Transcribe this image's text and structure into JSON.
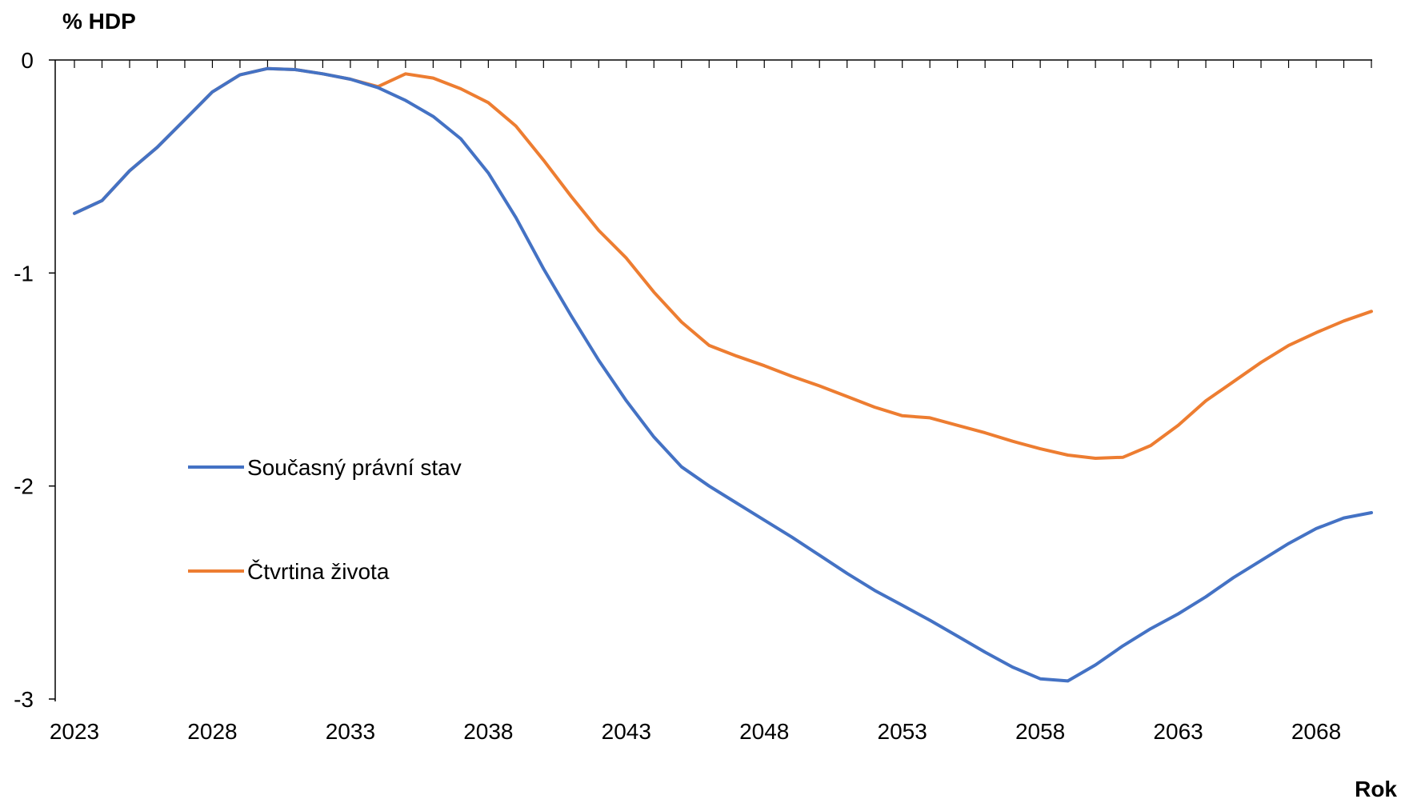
{
  "chart_data": {
    "type": "line",
    "ylabel": "% HDP",
    "xlabel": "Rok",
    "xlim": [
      2023,
      2070
    ],
    "ylim": [
      -3,
      0
    ],
    "y_ticks": [
      0,
      -1,
      -2,
      -3
    ],
    "x_tick_labels": [
      2023,
      2028,
      2033,
      2038,
      2043,
      2048,
      2053,
      2058,
      2063,
      2068
    ],
    "grid": false,
    "legend_position": "left-middle",
    "x": [
      2023,
      2024,
      2025,
      2026,
      2027,
      2028,
      2029,
      2030,
      2031,
      2032,
      2033,
      2034,
      2035,
      2036,
      2037,
      2038,
      2039,
      2040,
      2041,
      2042,
      2043,
      2044,
      2045,
      2046,
      2047,
      2048,
      2049,
      2050,
      2051,
      2052,
      2053,
      2054,
      2055,
      2056,
      2057,
      2058,
      2059,
      2060,
      2061,
      2062,
      2063,
      2064,
      2065,
      2066,
      2067,
      2068,
      2069,
      2070
    ],
    "series": [
      {
        "name": "Současný právní stav",
        "color": "#4472C4",
        "values": [
          -0.72,
          -0.66,
          -0.52,
          -0.41,
          -0.28,
          -0.15,
          -0.07,
          -0.04,
          -0.045,
          -0.065,
          -0.09,
          -0.13,
          -0.19,
          -0.265,
          -0.37,
          -0.53,
          -0.74,
          -0.98,
          -1.2,
          -1.41,
          -1.6,
          -1.77,
          -1.91,
          -2.0,
          -2.08,
          -2.16,
          -2.24,
          -2.325,
          -2.41,
          -2.49,
          -2.56,
          -2.63,
          -2.705,
          -2.78,
          -2.85,
          -2.905,
          -2.915,
          -2.84,
          -2.75,
          -2.67,
          -2.6,
          -2.52,
          -2.43,
          -2.35,
          -2.27,
          -2.2,
          -2.15,
          -2.125
        ]
      },
      {
        "name": "Čtvrtina života",
        "color": "#ED7D31",
        "values": [
          -0.72,
          -0.66,
          -0.52,
          -0.41,
          -0.28,
          -0.15,
          -0.07,
          -0.04,
          -0.045,
          -0.065,
          -0.09,
          -0.125,
          -0.065,
          -0.085,
          -0.135,
          -0.2,
          -0.31,
          -0.47,
          -0.64,
          -0.8,
          -0.93,
          -1.09,
          -1.23,
          -1.34,
          -1.39,
          -1.435,
          -1.485,
          -1.53,
          -1.58,
          -1.63,
          -1.67,
          -1.68,
          -1.715,
          -1.75,
          -1.79,
          -1.825,
          -1.855,
          -1.87,
          -1.865,
          -1.81,
          -1.715,
          -1.6,
          -1.51,
          -1.42,
          -1.34,
          -1.28,
          -1.225,
          -1.18
        ]
      }
    ]
  }
}
